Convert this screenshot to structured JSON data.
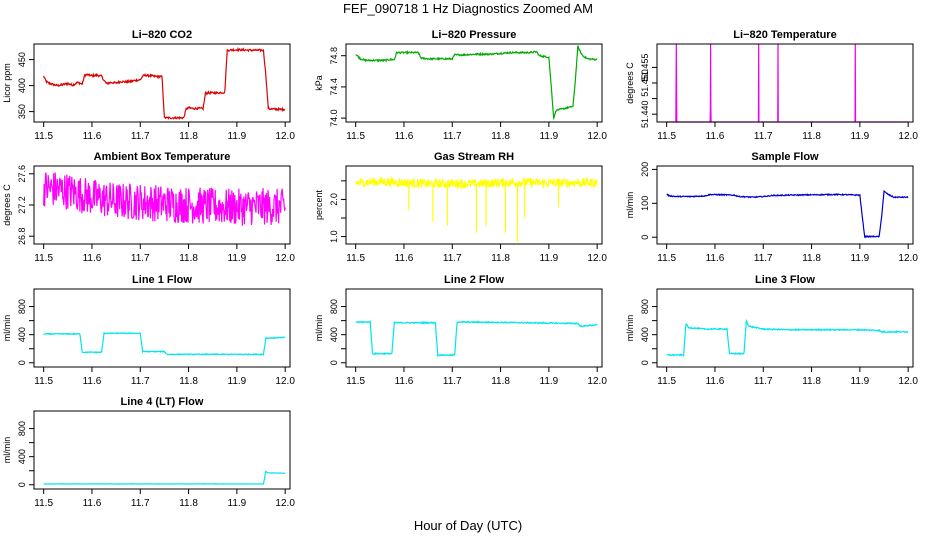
{
  "title": "FEF_090718  1 Hz Diagnostics Zoomed AM",
  "xlabel": "Hour of Day (UTC)",
  "chart_data": [
    {
      "type": "line",
      "title": "Li−820 CO2",
      "ylabel": "Licor ppm",
      "color": "#dd0000",
      "xlim": [
        11.48,
        12.01
      ],
      "xticks": [
        11.5,
        11.6,
        11.7,
        11.8,
        11.9,
        12.0
      ],
      "xtick_labels": [
        "11.5",
        "11.6",
        "11.7",
        "11.8",
        "11.9",
        "12.0"
      ],
      "ylim": [
        330,
        480
      ],
      "yticks": [
        350,
        400,
        450
      ],
      "ytick_labels": [
        "350",
        "400",
        "450"
      ],
      "noise": 2,
      "x": [
        11.5,
        11.505,
        11.51,
        11.52,
        11.53,
        11.54,
        11.55,
        11.56,
        11.57,
        11.58,
        11.585,
        11.59,
        11.6,
        11.61,
        11.62,
        11.625,
        11.63,
        11.64,
        11.65,
        11.66,
        11.67,
        11.68,
        11.69,
        11.7,
        11.705,
        11.71,
        11.72,
        11.73,
        11.745,
        11.75,
        11.76,
        11.79,
        11.795,
        11.8,
        11.81,
        11.83,
        11.835,
        11.84,
        11.86,
        11.875,
        11.88,
        11.9,
        11.93,
        11.955,
        11.96,
        11.965,
        11.97,
        12.0
      ],
      "y": [
        418,
        408,
        405,
        402,
        400,
        402,
        404,
        401,
        406,
        403,
        420,
        421,
        419,
        420,
        418,
        410,
        404,
        406,
        405,
        408,
        407,
        408,
        410,
        411,
        418,
        420,
        419,
        418,
        417,
        338,
        338,
        338,
        355,
        357,
        356,
        356,
        385,
        386,
        386,
        387,
        468,
        469,
        468,
        468,
        420,
        356,
        355,
        354
      ]
    },
    {
      "type": "line",
      "title": "Li−820 Pressure",
      "ylabel": "kPa",
      "color": "#00aa00",
      "xlim": [
        11.48,
        12.01
      ],
      "xticks": [
        11.5,
        11.6,
        11.7,
        11.8,
        11.9,
        12.0
      ],
      "xtick_labels": [
        "11.5",
        "11.6",
        "11.7",
        "11.8",
        "11.9",
        "12.0"
      ],
      "ylim": [
        73.95,
        74.95
      ],
      "yticks": [
        74.0,
        74.4,
        74.8
      ],
      "ytick_labels": [
        "74.0",
        "74.4",
        "74.8"
      ],
      "noise": 0.01,
      "x": [
        11.5,
        11.51,
        11.52,
        11.53,
        11.55,
        11.56,
        11.57,
        11.58,
        11.585,
        11.6,
        11.62,
        11.63,
        11.635,
        11.65,
        11.68,
        11.7,
        11.705,
        11.72,
        11.75,
        11.78,
        11.8,
        11.82,
        11.84,
        11.86,
        11.875,
        11.88,
        11.89,
        11.9,
        11.905,
        11.91,
        11.915,
        11.93,
        11.95,
        11.955,
        11.96,
        11.965,
        11.97,
        11.98,
        12.0
      ],
      "y": [
        74.82,
        74.76,
        74.74,
        74.74,
        74.74,
        74.74,
        74.75,
        74.75,
        74.84,
        74.84,
        74.84,
        74.84,
        74.77,
        74.76,
        74.76,
        74.76,
        74.81,
        74.81,
        74.82,
        74.82,
        74.83,
        74.84,
        74.84,
        74.84,
        74.85,
        74.8,
        74.79,
        74.78,
        74.4,
        74.0,
        74.1,
        74.12,
        74.15,
        74.5,
        74.92,
        74.85,
        74.8,
        74.76,
        74.75
      ]
    },
    {
      "type": "line",
      "title": "Li−820 Temperature",
      "ylabel": "degrees C",
      "color": "#ee00ee",
      "xlim": [
        11.48,
        12.01
      ],
      "xticks": [
        11.5,
        11.6,
        11.7,
        11.8,
        11.9,
        12.0
      ],
      "xtick_labels": [
        "11.5",
        "11.6",
        "11.7",
        "11.8",
        "11.9",
        "12.0"
      ],
      "ylim": [
        51.4375,
        51.4625
      ],
      "yticks": [
        51.44,
        51.445,
        51.45,
        51.455
      ],
      "ytick_labels": [
        "51.440",
        "",
        "51.450",
        "51.455"
      ],
      "noise": 0,
      "x": [
        11.5,
        11.519,
        11.52,
        11.521,
        11.59,
        11.5905,
        11.591,
        11.5915,
        11.592,
        11.69,
        11.6905,
        11.691,
        11.73,
        11.7305,
        11.731,
        11.89,
        11.8905,
        11.891,
        12.0
      ],
      "y": [
        51.4375,
        51.4375,
        51.4625,
        51.4375,
        51.4375,
        51.442,
        51.4625,
        51.442,
        51.4375,
        51.4375,
        51.4625,
        51.4375,
        51.4375,
        51.4625,
        51.4375,
        51.4375,
        51.4625,
        51.4375,
        51.4375
      ]
    },
    {
      "type": "line",
      "title": "Ambient Box Temperature",
      "ylabel": "degrees C",
      "color": "#ff00ff",
      "xlim": [
        11.48,
        12.01
      ],
      "xticks": [
        11.5,
        11.6,
        11.7,
        11.8,
        11.9,
        12.0
      ],
      "xtick_labels": [
        "11.5",
        "11.6",
        "11.7",
        "11.8",
        "11.9",
        "12.0"
      ],
      "ylim": [
        26.7,
        27.7
      ],
      "yticks": [
        26.8,
        27.2,
        27.6
      ],
      "ytick_labels": [
        "26.8",
        "27.2",
        "27.6"
      ],
      "noise": 0.24,
      "x": [
        11.5,
        11.55,
        11.6,
        11.65,
        11.7,
        11.75,
        11.8,
        11.85,
        11.9,
        11.95,
        12.0
      ],
      "y": [
        27.42,
        27.38,
        27.3,
        27.25,
        27.24,
        27.22,
        27.2,
        27.18,
        27.17,
        27.18,
        27.17
      ]
    },
    {
      "type": "line",
      "title": "Gas Stream RH",
      "ylabel": "percent",
      "color": "#ffff00",
      "xlim": [
        11.48,
        12.01
      ],
      "xticks": [
        11.5,
        11.6,
        11.7,
        11.8,
        11.9,
        12.0
      ],
      "xtick_labels": [
        "11.5",
        "11.6",
        "11.7",
        "11.8",
        "11.9",
        "12.0"
      ],
      "ylim": [
        0.8,
        2.9
      ],
      "yticks": [
        1.0,
        1.5,
        2.0,
        2.5
      ],
      "ytick_labels": [
        "1.0",
        "",
        "2.0",
        ""
      ],
      "noise": 0.12,
      "x": [
        11.5,
        11.55,
        11.6,
        11.65,
        11.7,
        11.75,
        11.8,
        11.85,
        11.9,
        11.95,
        12.0
      ],
      "y": [
        2.45,
        2.48,
        2.45,
        2.42,
        2.43,
        2.42,
        2.45,
        2.46,
        2.44,
        2.45,
        2.45
      ]
    },
    {
      "type": "line",
      "title": "Sample Flow",
      "ylabel": "ml/min",
      "color": "#0000cc",
      "xlim": [
        11.48,
        12.01
      ],
      "xticks": [
        11.5,
        11.6,
        11.7,
        11.8,
        11.9,
        12.0
      ],
      "xtick_labels": [
        "11.5",
        "11.6",
        "11.7",
        "11.8",
        "11.9",
        "12.0"
      ],
      "ylim": [
        -20,
        210
      ],
      "yticks": [
        0,
        100,
        200
      ],
      "ytick_labels": [
        "0",
        "100",
        "200"
      ],
      "noise": 1.5,
      "x": [
        11.5,
        11.505,
        11.52,
        11.55,
        11.58,
        11.59,
        11.62,
        11.64,
        11.65,
        11.68,
        11.7,
        11.72,
        11.75,
        11.8,
        11.85,
        11.88,
        11.9,
        11.905,
        11.91,
        11.94,
        11.945,
        11.95,
        11.96,
        11.97,
        12.0
      ],
      "y": [
        128,
        122,
        120,
        120,
        122,
        126,
        125,
        124,
        120,
        118,
        120,
        123,
        124,
        125,
        126,
        125,
        124,
        60,
        2,
        2,
        60,
        135,
        125,
        118,
        118
      ]
    },
    {
      "type": "line",
      "title": "Line 1 Flow",
      "ylabel": "ml/min",
      "color": "#00e5ee",
      "xlim": [
        11.48,
        12.01
      ],
      "xticks": [
        11.5,
        11.6,
        11.7,
        11.8,
        11.9,
        12.0
      ],
      "xtick_labels": [
        "11.5",
        "11.6",
        "11.7",
        "11.8",
        "11.9",
        "12.0"
      ],
      "ylim": [
        -60,
        1050
      ],
      "yticks": [
        0,
        200,
        400,
        600,
        800
      ],
      "ytick_labels": [
        "0",
        "",
        "400",
        "",
        "800"
      ],
      "noise": 6,
      "x": [
        11.5,
        11.55,
        11.575,
        11.58,
        11.62,
        11.625,
        11.7,
        11.705,
        11.75,
        11.755,
        11.95,
        11.955,
        11.96,
        12.0
      ],
      "y": [
        410,
        410,
        410,
        150,
        150,
        420,
        420,
        160,
        160,
        120,
        120,
        120,
        350,
        360
      ]
    },
    {
      "type": "line",
      "title": "Line 2 Flow",
      "ylabel": "ml/min",
      "color": "#00e5ee",
      "xlim": [
        11.48,
        12.01
      ],
      "xticks": [
        11.5,
        11.6,
        11.7,
        11.8,
        11.9,
        12.0
      ],
      "xtick_labels": [
        "11.5",
        "11.6",
        "11.7",
        "11.8",
        "11.9",
        "12.0"
      ],
      "ylim": [
        -60,
        1050
      ],
      "yticks": [
        0,
        200,
        400,
        600,
        800
      ],
      "ytick_labels": [
        "0",
        "",
        "400",
        "",
        "800"
      ],
      "noise": 8,
      "x": [
        11.5,
        11.53,
        11.535,
        11.575,
        11.58,
        11.665,
        11.67,
        11.705,
        11.71,
        11.8,
        11.95,
        11.96,
        11.965,
        12.0
      ],
      "y": [
        580,
        580,
        130,
        130,
        570,
        570,
        110,
        110,
        580,
        575,
        560,
        560,
        520,
        540
      ]
    },
    {
      "type": "line",
      "title": "Line 3 Flow",
      "ylabel": "ml/min",
      "color": "#00e5ee",
      "xlim": [
        11.48,
        12.01
      ],
      "xticks": [
        11.5,
        11.6,
        11.7,
        11.8,
        11.9,
        12.0
      ],
      "xtick_labels": [
        "11.5",
        "11.6",
        "11.7",
        "11.8",
        "11.9",
        "12.0"
      ],
      "ylim": [
        -60,
        1050
      ],
      "yticks": [
        0,
        200,
        400,
        600,
        800
      ],
      "ytick_labels": [
        "0",
        "",
        "400",
        "",
        "800"
      ],
      "noise": 8,
      "x": [
        11.5,
        11.535,
        11.54,
        11.545,
        11.58,
        11.625,
        11.63,
        11.66,
        11.665,
        11.67,
        11.7,
        11.75,
        11.8,
        11.85,
        11.9,
        11.94,
        11.945,
        12.0
      ],
      "y": [
        110,
        110,
        560,
        500,
        480,
        480,
        130,
        130,
        600,
        520,
        480,
        470,
        470,
        470,
        470,
        460,
        440,
        440
      ]
    },
    {
      "type": "line",
      "title": "Line 4 (LT) Flow",
      "ylabel": "ml/min",
      "color": "#00e5ee",
      "xlim": [
        11.48,
        12.01
      ],
      "xticks": [
        11.5,
        11.6,
        11.7,
        11.8,
        11.9,
        12.0
      ],
      "xtick_labels": [
        "11.5",
        "11.6",
        "11.7",
        "11.8",
        "11.9",
        "12.0"
      ],
      "ylim": [
        -60,
        1050
      ],
      "yticks": [
        0,
        200,
        400,
        600,
        800
      ],
      "ytick_labels": [
        "0",
        "",
        "400",
        "",
        "800"
      ],
      "noise": 2,
      "x": [
        11.5,
        11.7,
        11.955,
        11.96,
        11.965,
        12.0
      ],
      "y": [
        12,
        12,
        12,
        190,
        170,
        165
      ]
    }
  ]
}
